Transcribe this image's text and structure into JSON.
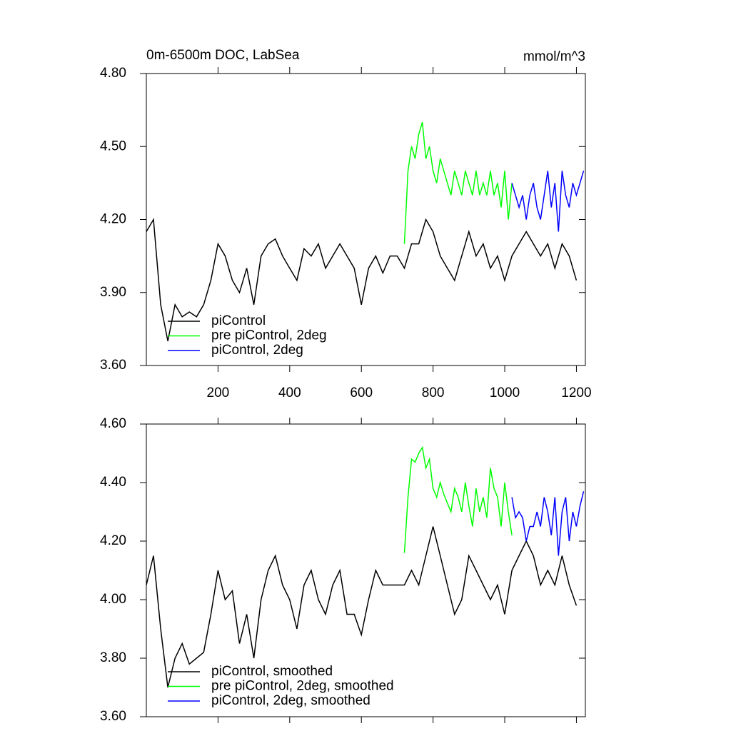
{
  "chart_data": [
    {
      "type": "line",
      "title": "0m-6500m DOC, LabSea",
      "units": "mmol/m^3",
      "xlim": [
        0,
        1225
      ],
      "xticks": [
        200,
        400,
        600,
        800,
        1000,
        1200
      ],
      "xtick_labels": true,
      "ylim": [
        3.6,
        4.8
      ],
      "yticks": [
        {
          "value": 3.6,
          "label": "3.60"
        },
        {
          "value": 3.9,
          "label": "3.90"
        },
        {
          "value": 4.2,
          "label": "4.20"
        },
        {
          "value": 4.5,
          "label": "4.50"
        },
        {
          "value": 4.8,
          "label": "4.80"
        }
      ],
      "series": [
        {
          "name": "piControl",
          "color": "#000000",
          "x": [
            0,
            20,
            40,
            60,
            80,
            100,
            120,
            140,
            160,
            180,
            200,
            220,
            240,
            260,
            280,
            300,
            320,
            340,
            360,
            380,
            400,
            420,
            440,
            460,
            480,
            500,
            520,
            540,
            560,
            580,
            600,
            620,
            640,
            660,
            680,
            700,
            720,
            740,
            760,
            780,
            800,
            820,
            840,
            860,
            880,
            900,
            920,
            940,
            960,
            980,
            1000,
            1020,
            1040,
            1060,
            1080,
            1100,
            1120,
            1140,
            1160,
            1180,
            1200
          ],
          "values": [
            4.15,
            4.2,
            3.85,
            3.7,
            3.85,
            3.8,
            3.82,
            3.8,
            3.85,
            3.95,
            4.1,
            4.05,
            3.95,
            3.9,
            4.0,
            3.85,
            4.05,
            4.1,
            4.12,
            4.05,
            4.0,
            3.95,
            4.08,
            4.05,
            4.1,
            4.0,
            4.05,
            4.1,
            4.05,
            4.0,
            3.85,
            4.0,
            4.05,
            3.98,
            4.05,
            4.05,
            4.0,
            4.1,
            4.1,
            4.2,
            4.15,
            4.05,
            4.0,
            3.95,
            4.05,
            4.15,
            4.05,
            4.1,
            4.0,
            4.05,
            3.95,
            4.05,
            4.1,
            4.15,
            4.1,
            4.05,
            4.1,
            4.0,
            4.1,
            4.05,
            3.95
          ]
        },
        {
          "name": "pre piControl, 2deg",
          "color": "#00ff00",
          "x": [
            720,
            730,
            740,
            750,
            760,
            770,
            780,
            790,
            800,
            810,
            820,
            830,
            840,
            850,
            860,
            870,
            880,
            890,
            900,
            910,
            920,
            930,
            940,
            950,
            960,
            970,
            980,
            990,
            1000,
            1010,
            1020
          ],
          "values": [
            4.1,
            4.4,
            4.5,
            4.45,
            4.55,
            4.6,
            4.45,
            4.5,
            4.4,
            4.35,
            4.45,
            4.4,
            4.35,
            4.3,
            4.4,
            4.35,
            4.3,
            4.4,
            4.35,
            4.3,
            4.4,
            4.3,
            4.35,
            4.3,
            4.4,
            4.3,
            4.35,
            4.25,
            4.4,
            4.2,
            4.35
          ]
        },
        {
          "name": "piControl, 2deg",
          "color": "#0000ff",
          "x": [
            1020,
            1030,
            1040,
            1050,
            1060,
            1070,
            1080,
            1090,
            1100,
            1110,
            1120,
            1130,
            1140,
            1150,
            1160,
            1170,
            1180,
            1190,
            1200,
            1210,
            1220
          ],
          "values": [
            4.35,
            4.3,
            4.25,
            4.3,
            4.2,
            4.3,
            4.35,
            4.25,
            4.2,
            4.3,
            4.4,
            4.25,
            4.35,
            4.15,
            4.4,
            4.3,
            4.25,
            4.35,
            4.3,
            4.35,
            4.4
          ]
        }
      ]
    },
    {
      "type": "line",
      "xlim": [
        0,
        1225
      ],
      "xticks": [
        200,
        400,
        600,
        800,
        1000,
        1200
      ],
      "xtick_labels": false,
      "ylim": [
        3.6,
        4.6
      ],
      "yticks": [
        {
          "value": 3.6,
          "label": "3.60"
        },
        {
          "value": 3.8,
          "label": "3.80"
        },
        {
          "value": 4.0,
          "label": "4.00"
        },
        {
          "value": 4.2,
          "label": "4.20"
        },
        {
          "value": 4.4,
          "label": "4.40"
        },
        {
          "value": 4.6,
          "label": "4.60"
        }
      ],
      "series": [
        {
          "name": "piControl, smoothed",
          "color": "#000000",
          "x": [
            0,
            20,
            40,
            60,
            80,
            100,
            120,
            140,
            160,
            180,
            200,
            220,
            240,
            260,
            280,
            300,
            320,
            340,
            360,
            380,
            400,
            420,
            440,
            460,
            480,
            500,
            520,
            540,
            560,
            580,
            600,
            620,
            640,
            660,
            680,
            700,
            720,
            740,
            760,
            780,
            800,
            820,
            840,
            860,
            880,
            900,
            920,
            940,
            960,
            980,
            1000,
            1020,
            1040,
            1060,
            1080,
            1100,
            1120,
            1140,
            1160,
            1180,
            1200
          ],
          "values": [
            4.05,
            4.15,
            3.9,
            3.7,
            3.8,
            3.85,
            3.78,
            3.8,
            3.82,
            3.95,
            4.1,
            4.0,
            4.03,
            3.85,
            3.95,
            3.8,
            4.0,
            4.1,
            4.15,
            4.05,
            4.0,
            3.9,
            4.05,
            4.1,
            4.0,
            3.95,
            4.05,
            4.1,
            3.95,
            3.95,
            3.88,
            4.0,
            4.1,
            4.05,
            4.05,
            4.05,
            4.05,
            4.1,
            4.05,
            4.15,
            4.25,
            4.15,
            4.05,
            3.95,
            4.0,
            4.15,
            4.1,
            4.05,
            4.0,
            4.05,
            3.95,
            4.1,
            4.15,
            4.2,
            4.15,
            4.05,
            4.1,
            4.05,
            4.15,
            4.05,
            3.98
          ]
        },
        {
          "name": "pre piControl, 2deg, smoothed",
          "color": "#00ff00",
          "x": [
            720,
            730,
            740,
            750,
            760,
            770,
            780,
            790,
            800,
            810,
            820,
            830,
            840,
            850,
            860,
            870,
            880,
            890,
            900,
            910,
            920,
            930,
            940,
            950,
            960,
            970,
            980,
            990,
            1000,
            1010,
            1020
          ],
          "values": [
            4.16,
            4.35,
            4.48,
            4.47,
            4.5,
            4.52,
            4.45,
            4.48,
            4.38,
            4.35,
            4.4,
            4.36,
            4.33,
            4.3,
            4.38,
            4.35,
            4.3,
            4.4,
            4.32,
            4.25,
            4.38,
            4.3,
            4.35,
            4.28,
            4.45,
            4.38,
            4.35,
            4.25,
            4.4,
            4.3,
            4.22
          ]
        },
        {
          "name": "piControl, 2deg, smoothed",
          "color": "#0000ff",
          "x": [
            1020,
            1030,
            1040,
            1050,
            1060,
            1070,
            1080,
            1090,
            1100,
            1110,
            1120,
            1130,
            1140,
            1150,
            1160,
            1170,
            1180,
            1190,
            1200,
            1210,
            1220
          ],
          "values": [
            4.35,
            4.28,
            4.3,
            4.28,
            4.2,
            4.25,
            4.25,
            4.3,
            4.25,
            4.35,
            4.3,
            4.22,
            4.35,
            4.15,
            4.3,
            4.35,
            4.2,
            4.3,
            4.25,
            4.32,
            4.37
          ]
        }
      ]
    }
  ]
}
